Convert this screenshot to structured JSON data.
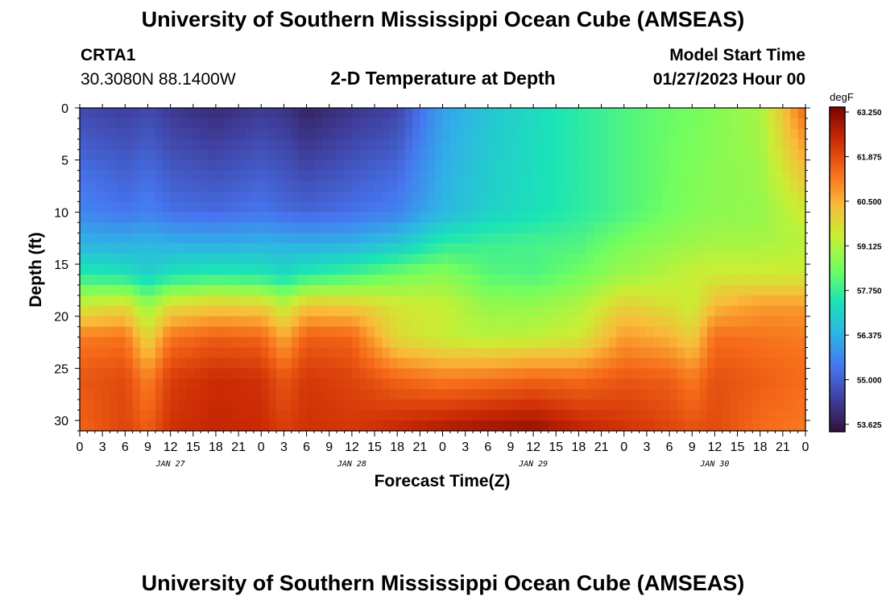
{
  "header": {
    "title": "University of Southern Mississippi Ocean Cube (AMSEAS)",
    "station_id": "CRTA1",
    "station_coords": "30.3080N  88.1400W",
    "plot_title": "2-D Temperature at Depth",
    "model_start_label": "Model Start Time",
    "model_start_value": "01/27/2023 Hour 00"
  },
  "footer": {
    "title": "University of Southern Mississippi Ocean Cube (AMSEAS)"
  },
  "colors": {
    "colormap": [
      "#30123b",
      "#3f3e9c",
      "#4676f0",
      "#2fb2e6",
      "#1ae4b6",
      "#72fe5e",
      "#c8ef34",
      "#faba39",
      "#f66b19",
      "#cb2a04",
      "#7a0403"
    ]
  },
  "chart_data": {
    "type": "heatmap",
    "xlabel": "Forecast Time(Z)",
    "ylabel": "Depth (ft)",
    "colorbar_unit": "degF",
    "x_hours": [
      0,
      96
    ],
    "ylim": [
      0,
      31
    ],
    "y_ticks": [
      0,
      5,
      10,
      15,
      20,
      25,
      30
    ],
    "x_tick_labels": [
      "0",
      "3",
      "6",
      "9",
      "12",
      "15",
      "18",
      "21",
      "0",
      "3",
      "6",
      "9",
      "12",
      "15",
      "18",
      "21",
      "0",
      "3",
      "6",
      "9",
      "12",
      "15",
      "18",
      "21",
      "0",
      "3",
      "6",
      "9",
      "12",
      "15",
      "18",
      "21",
      "0"
    ],
    "date_labels": [
      {
        "hour": 12,
        "label": "JAN 27"
      },
      {
        "hour": 36,
        "label": "JAN 28"
      },
      {
        "hour": 60,
        "label": "JAN 29"
      },
      {
        "hour": 84,
        "label": "JAN 30"
      }
    ],
    "colorbar_ticks": [
      "63.250",
      "61.875",
      "60.500",
      "59.125",
      "57.750",
      "56.375",
      "55.000",
      "53.625"
    ],
    "colorbar_range": [
      53.4,
      63.4
    ],
    "depth_levels": [
      0,
      10,
      13,
      16,
      19,
      22,
      26,
      31
    ],
    "time_hours": [
      0,
      6,
      9,
      12,
      18,
      24,
      27,
      30,
      36,
      42,
      48,
      54,
      60,
      66,
      72,
      78,
      81,
      84,
      90,
      96
    ],
    "temperature": [
      [
        54.6,
        54.4,
        54.6,
        54.3,
        54.0,
        54.3,
        54.2,
        53.8,
        54.2,
        54.5,
        56.1,
        56.8,
        57.2,
        57.6,
        58.0,
        58.3,
        58.4,
        58.6,
        59.0,
        61.5
      ],
      [
        55.7,
        55.4,
        55.6,
        55.3,
        55.2,
        55.4,
        55.2,
        55.1,
        55.3,
        55.6,
        56.5,
        57.0,
        57.3,
        57.6,
        58.0,
        58.4,
        58.6,
        58.7,
        58.8,
        59.5
      ],
      [
        56.4,
        56.4,
        56.5,
        56.4,
        56.3,
        56.4,
        56.4,
        56.3,
        56.4,
        56.8,
        57.6,
        57.8,
        57.9,
        58.0,
        58.5,
        58.8,
        58.9,
        59.0,
        59.0,
        59.2
      ],
      [
        57.6,
        57.4,
        57.0,
        57.4,
        57.6,
        57.5,
        57.2,
        57.6,
        57.9,
        58.4,
        58.7,
        58.1,
        58.0,
        58.4,
        58.9,
        59.2,
        59.4,
        59.5,
        59.5,
        59.5
      ],
      [
        59.5,
        59.8,
        58.8,
        59.8,
        60.1,
        60.0,
        59.3,
        60.2,
        60.1,
        59.6,
        59.4,
        58.8,
        58.8,
        59.1,
        60.0,
        59.7,
        59.4,
        60.4,
        60.8,
        60.8
      ],
      [
        61.2,
        61.3,
        59.8,
        61.3,
        61.6,
        61.5,
        60.6,
        61.6,
        61.5,
        59.8,
        59.4,
        59.2,
        59.3,
        59.5,
        60.8,
        60.5,
        60.0,
        61.4,
        61.3,
        61.2
      ],
      [
        61.7,
        61.9,
        61.1,
        62.1,
        62.4,
        62.3,
        61.7,
        62.2,
        62.0,
        61.5,
        61.2,
        61.3,
        61.5,
        61.4,
        61.7,
        61.6,
        61.2,
        61.8,
        61.6,
        61.4
      ],
      [
        61.5,
        62.0,
        61.6,
        62.3,
        62.5,
        62.4,
        62.1,
        62.3,
        62.2,
        62.5,
        62.8,
        63.0,
        63.1,
        62.6,
        62.3,
        62.0,
        61.8,
        61.9,
        61.4,
        61.2
      ]
    ]
  }
}
